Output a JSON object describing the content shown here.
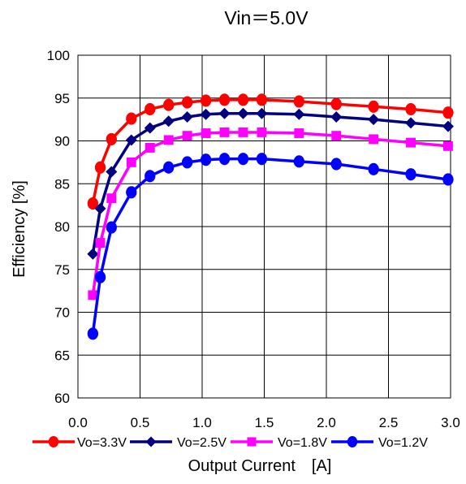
{
  "chart_data": {
    "type": "line",
    "title": "Vin＝5.0V",
    "xlabel": "Output Current　[A]",
    "ylabel": "Efficiency [%]",
    "xlim": [
      0.0,
      3.0
    ],
    "ylim": [
      60,
      100
    ],
    "xticks": [
      "0.0",
      "0.5",
      "1.0",
      "1.5",
      "2.0",
      "2.5",
      "3.0"
    ],
    "yticks": [
      "60",
      "65",
      "70",
      "75",
      "80",
      "85",
      "90",
      "95",
      "100"
    ],
    "grid": true,
    "legend_position": "bottom",
    "x": [
      0.12,
      0.18,
      0.27,
      0.43,
      0.58,
      0.73,
      0.88,
      1.03,
      1.18,
      1.33,
      1.48,
      1.78,
      2.08,
      2.38,
      2.68,
      2.98
    ],
    "series": [
      {
        "name": "Vo=3.3V",
        "color": "#ff0000",
        "marker": "circle",
        "values": [
          82.7,
          86.9,
          90.2,
          92.6,
          93.7,
          94.2,
          94.5,
          94.7,
          94.8,
          94.8,
          94.8,
          94.6,
          94.3,
          94.0,
          93.7,
          93.3
        ]
      },
      {
        "name": "Vo=2.5V",
        "color": "#000080",
        "marker": "diamond",
        "values": [
          76.8,
          82.1,
          86.4,
          90.1,
          91.5,
          92.3,
          92.8,
          93.1,
          93.2,
          93.2,
          93.2,
          93.1,
          92.8,
          92.5,
          92.1,
          91.7
        ]
      },
      {
        "name": "Vo=1.8V",
        "color": "#ff00ff",
        "marker": "square",
        "values": [
          72.0,
          78.1,
          83.3,
          87.5,
          89.2,
          90.1,
          90.6,
          90.9,
          91.0,
          91.0,
          91.0,
          90.9,
          90.6,
          90.2,
          89.8,
          89.4
        ]
      },
      {
        "name": "Vo=1.2V",
        "color": "#0000ff",
        "marker": "circle",
        "values": [
          67.5,
          74.1,
          79.9,
          84.0,
          85.9,
          86.9,
          87.5,
          87.8,
          87.9,
          87.9,
          87.9,
          87.6,
          87.3,
          86.7,
          86.1,
          85.5
        ]
      }
    ]
  }
}
